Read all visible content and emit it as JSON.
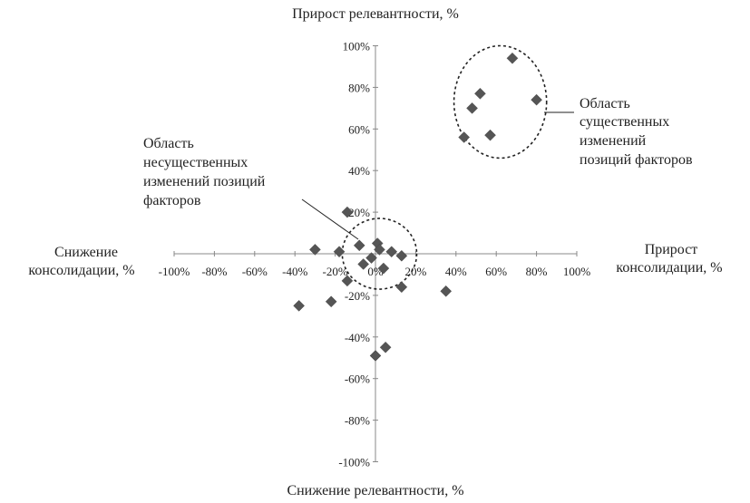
{
  "chart_data": {
    "type": "scatter",
    "title": "",
    "labels": {
      "top": "Прирост релевантности, %",
      "bottom": "Снижение релевантности, %",
      "left": [
        "Снижение",
        "консолидации, %"
      ],
      "right": [
        "Прирост",
        "консолидации, %"
      ]
    },
    "xlim": [
      -100,
      100
    ],
    "ylim": [
      -100,
      100
    ],
    "x_ticks": [
      "-100%",
      "-80%",
      "-60%",
      "-40%",
      "-20%",
      "0%",
      "20%",
      "40%",
      "60%",
      "80%",
      "100%"
    ],
    "y_ticks": [
      "-100%",
      "-80%",
      "-60%",
      "-40%",
      "-20%",
      "0%",
      "20%",
      "40%",
      "60%",
      "80%",
      "100%"
    ],
    "grid": false,
    "legend": "none",
    "marker": "diamond",
    "marker_color": "#555555",
    "points": [
      {
        "x": 68,
        "y": 94
      },
      {
        "x": 52,
        "y": 77
      },
      {
        "x": 80,
        "y": 74
      },
      {
        "x": 48,
        "y": 70
      },
      {
        "x": 57,
        "y": 57
      },
      {
        "x": 44,
        "y": 56
      },
      {
        "x": -14,
        "y": 20
      },
      {
        "x": -30,
        "y": 2
      },
      {
        "x": -18,
        "y": 1
      },
      {
        "x": -8,
        "y": 4
      },
      {
        "x": -2,
        "y": -2
      },
      {
        "x": 1,
        "y": 5
      },
      {
        "x": 2,
        "y": 2
      },
      {
        "x": 4,
        "y": -7
      },
      {
        "x": 8,
        "y": 1
      },
      {
        "x": 13,
        "y": -1
      },
      {
        "x": -6,
        "y": -5
      },
      {
        "x": -14,
        "y": -13
      },
      {
        "x": 13,
        "y": -16
      },
      {
        "x": 35,
        "y": -18
      },
      {
        "x": -38,
        "y": -25
      },
      {
        "x": -22,
        "y": -23
      },
      {
        "x": 5,
        "y": -45
      },
      {
        "x": 0,
        "y": -49
      }
    ],
    "annotations": [
      {
        "name": "area-significant",
        "text": [
          "Область",
          "существенных",
          "изменений",
          "позиций факторов"
        ],
        "ellipse": {
          "cx": 62,
          "cy": 73,
          "rx": 23,
          "ry": 27
        }
      },
      {
        "name": "area-insignificant",
        "text": [
          "Область",
          "несущественных",
          "изменений позиций",
          "факторов"
        ],
        "ellipse": {
          "cx": 2,
          "cy": 0,
          "rx": 18.5,
          "ry": 17
        }
      }
    ]
  }
}
